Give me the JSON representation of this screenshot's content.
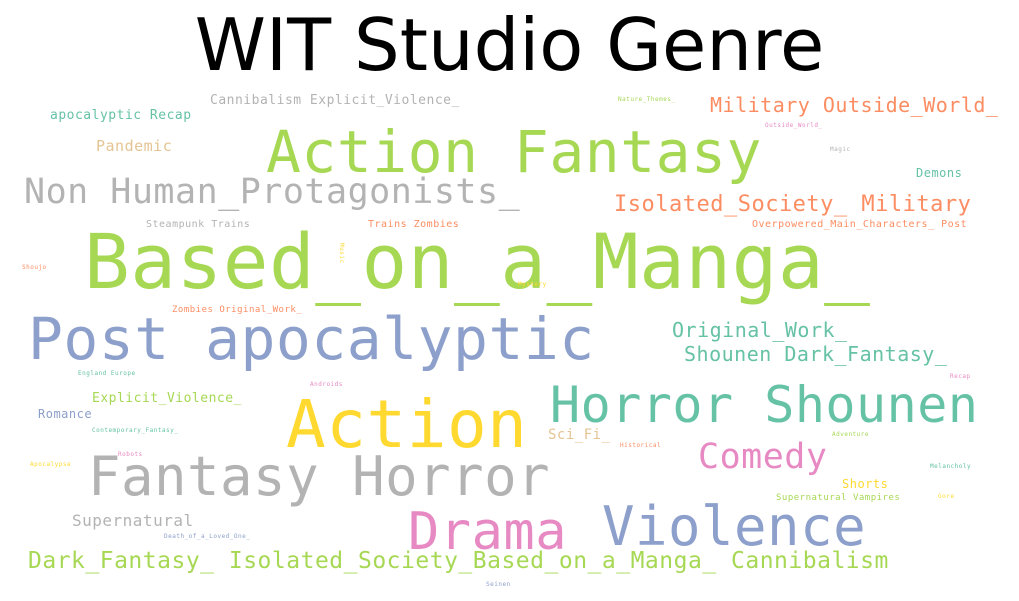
{
  "title": "WIT Studio Genre",
  "palette": {
    "green": "#a6d854",
    "blue": "#8da0cb",
    "teal": "#66c2a5",
    "orange": "#fc8d62",
    "gold": "#ffd92f",
    "pink": "#e78ac3",
    "gray": "#b3b3b3",
    "tan": "#e5c494"
  },
  "words": [
    {
      "text": "Based_on_a_Manga_",
      "color": "green"
    },
    {
      "text": "Action Fantasy",
      "color": "green"
    },
    {
      "text": "Post apocalyptic",
      "color": "blue"
    },
    {
      "text": "Action",
      "color": "gold"
    },
    {
      "text": "Fantasy Horror",
      "color": "gray"
    },
    {
      "text": "Horror Shounen",
      "color": "teal"
    },
    {
      "text": "Violence",
      "color": "blue"
    },
    {
      "text": "Drama",
      "color": "pink"
    },
    {
      "text": "Non Human_Protagonists_",
      "color": "gray"
    },
    {
      "text": "Comedy",
      "color": "pink"
    },
    {
      "text": "Dark_Fantasy_ Isolated_Society_Based_on_a_Manga_ Cannibalism",
      "color": "green"
    },
    {
      "text": "Isolated_Society_ Military",
      "color": "orange"
    },
    {
      "text": "Military Outside_World_",
      "color": "orange"
    },
    {
      "text": "Original_Work_",
      "color": "teal"
    },
    {
      "text": "Shounen Dark_Fantasy_",
      "color": "teal"
    },
    {
      "text": "Supernatural",
      "color": "gray"
    },
    {
      "text": "Cannibalism Explicit_Violence_",
      "color": "gray"
    },
    {
      "text": "apocalyptic Recap",
      "color": "teal"
    },
    {
      "text": "Pandemic",
      "color": "tan"
    },
    {
      "text": "Explicit_Violence_",
      "color": "green"
    },
    {
      "text": "Sci_Fi_",
      "color": "tan"
    },
    {
      "text": "Romance",
      "color": "blue"
    },
    {
      "text": "Demons",
      "color": "teal"
    },
    {
      "text": "Shorts",
      "color": "gold"
    },
    {
      "text": "Steampunk Trains",
      "color": "gray"
    },
    {
      "text": "Trains Zombies",
      "color": "orange"
    },
    {
      "text": "Overpowered_Main_Characters_ Post",
      "color": "orange"
    },
    {
      "text": "Zombies Original_Work_",
      "color": "orange"
    },
    {
      "text": "Supernatural Vampires",
      "color": "green"
    },
    {
      "text": "Nature_Themes_",
      "color": "green"
    },
    {
      "text": "Outside_World_",
      "color": "pink"
    },
    {
      "text": "Magic",
      "color": "gray"
    },
    {
      "text": "Shoujo",
      "color": "orange"
    },
    {
      "text": "Mystery",
      "color": "gold"
    },
    {
      "text": "England Europe",
      "color": "teal"
    },
    {
      "text": "Androids",
      "color": "pink"
    },
    {
      "text": "Recap",
      "color": "pink"
    },
    {
      "text": "Contemporary_Fantasy_",
      "color": "teal"
    },
    {
      "text": "Historical",
      "color": "orange"
    },
    {
      "text": "Adventure",
      "color": "green"
    },
    {
      "text": "Apocalypse",
      "color": "gold"
    },
    {
      "text": "Robots",
      "color": "pink"
    },
    {
      "text": "Melancholy",
      "color": "teal"
    },
    {
      "text": "Gore",
      "color": "gold"
    },
    {
      "text": "Death_of_a_Loved_One_",
      "color": "blue"
    },
    {
      "text": "Seinen",
      "color": "blue"
    },
    {
      "text": "Music",
      "color": "gold"
    }
  ]
}
